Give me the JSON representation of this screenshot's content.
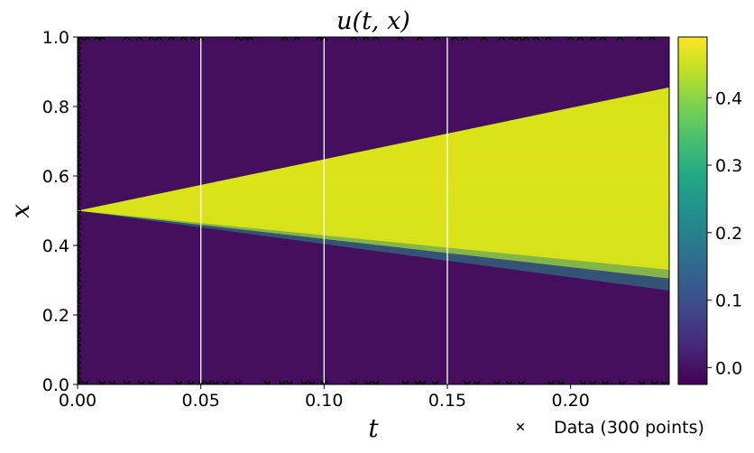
{
  "chart_data": {
    "type": "heatmap",
    "title": "u(t, x)",
    "xlabel": "t",
    "ylabel": "x",
    "xlim": [
      0,
      0.24
    ],
    "ylim": [
      0,
      1
    ],
    "x_ticks": [
      "0.00",
      "0.05",
      "0.10",
      "0.15",
      "0.20"
    ],
    "y_ticks": [
      "0.0",
      "0.2",
      "0.4",
      "0.6",
      "0.8",
      "1.0"
    ],
    "colormap": "viridis",
    "colorbar": {
      "range": [
        -0.025,
        0.49
      ],
      "ticks": [
        "0.0",
        "0.1",
        "0.2",
        "0.3",
        "0.4"
      ]
    },
    "field": {
      "background_value": 0.0,
      "plateau_value": 0.44,
      "apex": {
        "t": 0.0,
        "x": 0.5
      },
      "upper_front": [
        {
          "t": 0.0,
          "x": 0.5
        },
        {
          "t": 0.24,
          "x": 0.855
        }
      ],
      "lower_front": [
        {
          "t": 0.0,
          "x": 0.5
        },
        {
          "t": 0.24,
          "x": 0.27
        }
      ]
    },
    "vertical_lines_t": [
      0.05,
      0.1,
      0.15
    ],
    "data_points": {
      "label": "Data (300 points)",
      "marker": "x",
      "t_at_x0": [
        0.0,
        0.003,
        0.01,
        0.014,
        0.02,
        0.026,
        0.03,
        0.041,
        0.046,
        0.05,
        0.053,
        0.056,
        0.06,
        0.065,
        0.077,
        0.083,
        0.086,
        0.092,
        0.095,
        0.1,
        0.112,
        0.118,
        0.121,
        0.133,
        0.138,
        0.14,
        0.145,
        0.158,
        0.162,
        0.17,
        0.175,
        0.18,
        0.192,
        0.196,
        0.205,
        0.209,
        0.214,
        0.221,
        0.229,
        0.234,
        0.238
      ],
      "t_at_x1": [
        0.001,
        0.004,
        0.008,
        0.01,
        0.02,
        0.025,
        0.03,
        0.033,
        0.038,
        0.043,
        0.047,
        0.05,
        0.065,
        0.068,
        0.07,
        0.084,
        0.089,
        0.098,
        0.1,
        0.112,
        0.117,
        0.121,
        0.131,
        0.139,
        0.146,
        0.153,
        0.157,
        0.165,
        0.172,
        0.176,
        0.179,
        0.182,
        0.186,
        0.191,
        0.2,
        0.204,
        0.209,
        0.213,
        0.22,
        0.228,
        0.233
      ],
      "x_at_t0": [
        0.01,
        0.025,
        0.04,
        0.055,
        0.07,
        0.09,
        0.105,
        0.12,
        0.14,
        0.155,
        0.17,
        0.19,
        0.205,
        0.22,
        0.24,
        0.255,
        0.27,
        0.29,
        0.305,
        0.32,
        0.34,
        0.355,
        0.37,
        0.39,
        0.405,
        0.42,
        0.44,
        0.455,
        0.47,
        0.49,
        0.51,
        0.525,
        0.54,
        0.56,
        0.575,
        0.59,
        0.61,
        0.625,
        0.64,
        0.66,
        0.675,
        0.69,
        0.71,
        0.725,
        0.74,
        0.76,
        0.775,
        0.79,
        0.81,
        0.825,
        0.84,
        0.86,
        0.875,
        0.89,
        0.91,
        0.925,
        0.94,
        0.96,
        0.975,
        0.99
      ]
    }
  }
}
